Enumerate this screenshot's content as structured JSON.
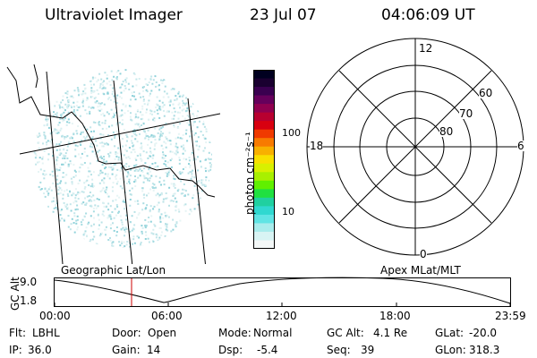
{
  "header": {
    "title": "Ultraviolet Imager",
    "date": "23 Jul 07",
    "time": "04:06:09 UT"
  },
  "colorbar": {
    "label": "photon cm⁻²s⁻¹",
    "ticks": [
      "100",
      "10"
    ],
    "colors": [
      "#000020",
      "#1a0030",
      "#3a0050",
      "#66005c",
      "#900050",
      "#b80030",
      "#d80010",
      "#f03a00",
      "#f87a00",
      "#f8b000",
      "#f8e000",
      "#d8f000",
      "#a8f000",
      "#60f000",
      "#20e040",
      "#20d0a0",
      "#30d8d0",
      "#60e4e4",
      "#a8ecec",
      "#d8f4f4",
      "#f4f8f8"
    ]
  },
  "polar": {
    "labels": [
      "12",
      "18",
      "6",
      "0",
      "60",
      "70",
      "80"
    ]
  },
  "timeline": {
    "left_title": "Geographic Lat/Lon",
    "right_title": "Apex MLat/MLT",
    "ylabel": "GC Alt",
    "ytick_top": "9.0",
    "ytick_bottom": "1.8",
    "xticks": [
      "00:00",
      "06:00",
      "12:00",
      "18:00",
      "23:59"
    ],
    "marker_color": "#cc0000"
  },
  "status": [
    {
      "label": "Flt:",
      "value": "LBHL"
    },
    {
      "label": "Door:",
      "value": "Open"
    },
    {
      "label": "Mode:",
      "value": "Normal"
    },
    {
      "label": "GC Alt:",
      "value": "4.1 Re"
    },
    {
      "label": "GLat:",
      "value": "-20.0"
    },
    {
      "label": "IP:",
      "value": "36.0"
    },
    {
      "label": "Gain:",
      "value": "14"
    },
    {
      "label": "Dsp:",
      "value": "-5.4"
    },
    {
      "label": "Seq:",
      "value": "39"
    },
    {
      "label": "GLon:",
      "value": "318.3"
    }
  ]
}
